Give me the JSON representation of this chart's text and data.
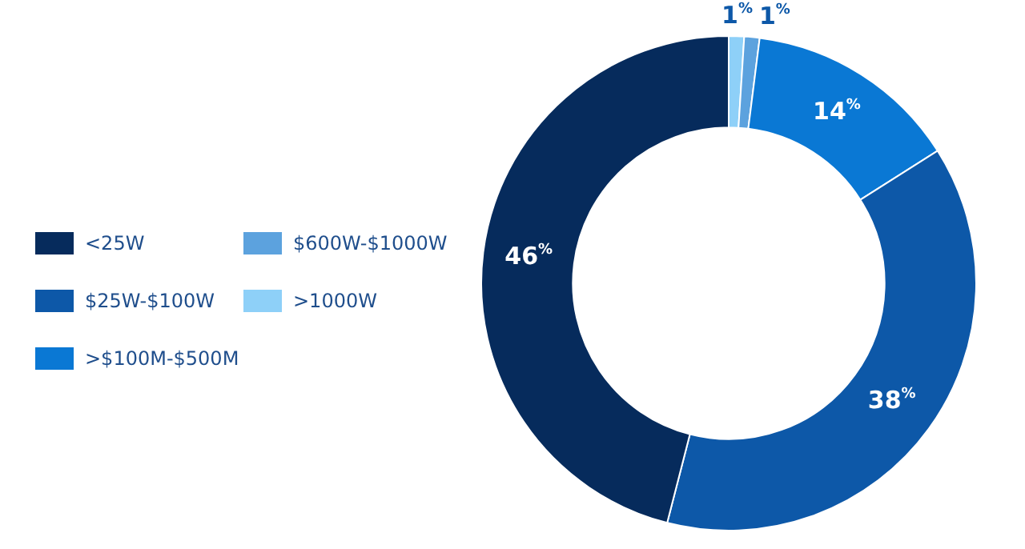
{
  "chart_data": {
    "type": "donut",
    "categories": [
      "<25W",
      "$25W-$100W",
      ">$100M-$500M",
      "$600W-$1000W",
      ">1000W"
    ],
    "values": [
      46,
      38,
      14,
      1,
      1
    ],
    "colors": [
      "#062b5c",
      "#0d58a8",
      "#0a78d4",
      "#5ca2de",
      "#8ed0f8"
    ],
    "value_labels": [
      "46$^{%}$",
      "38$^{%}$",
      "14$^{%}$",
      "1$^{%}$",
      "1$^{%}$"
    ],
    "legend": "left"
  }
}
